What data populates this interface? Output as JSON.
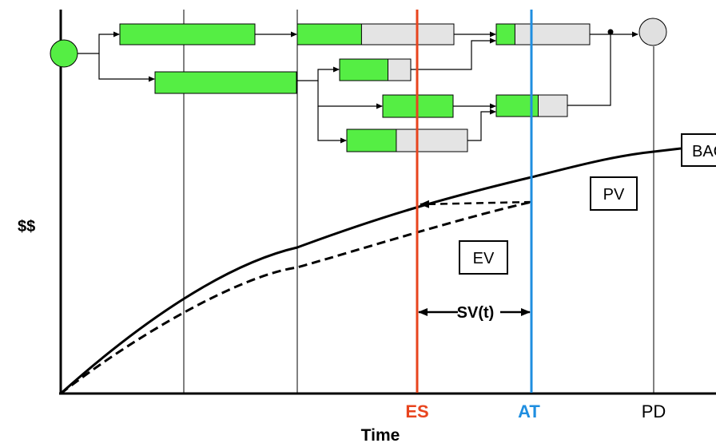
{
  "y_axis_label": "$$",
  "x_axis_label": "Time",
  "markers": {
    "es": {
      "label": "ES",
      "color": "#e8441e"
    },
    "at": {
      "label": "AT",
      "color": "#1f8ee0"
    },
    "pd": {
      "label": "PD"
    }
  },
  "callouts": {
    "bac": "BAC",
    "pv": "PV",
    "ev": "EV",
    "sv": "SV(t)"
  },
  "colors": {
    "task_complete": "#55ee44",
    "task_remaining": "#e4e4e4",
    "node_start": "#55ee44",
    "node_end": "#e0e0e0"
  },
  "tasks": [
    {
      "id": "task-1",
      "percent_complete": 100
    },
    {
      "id": "task-2",
      "percent_complete": 100
    },
    {
      "id": "task-3",
      "percent_complete": 41
    },
    {
      "id": "task-4",
      "percent_complete": 20
    },
    {
      "id": "task-5",
      "percent_complete": 68
    },
    {
      "id": "task-6",
      "percent_complete": 100
    },
    {
      "id": "task-7",
      "percent_complete": 59
    },
    {
      "id": "task-8",
      "percent_complete": 41
    }
  ]
}
